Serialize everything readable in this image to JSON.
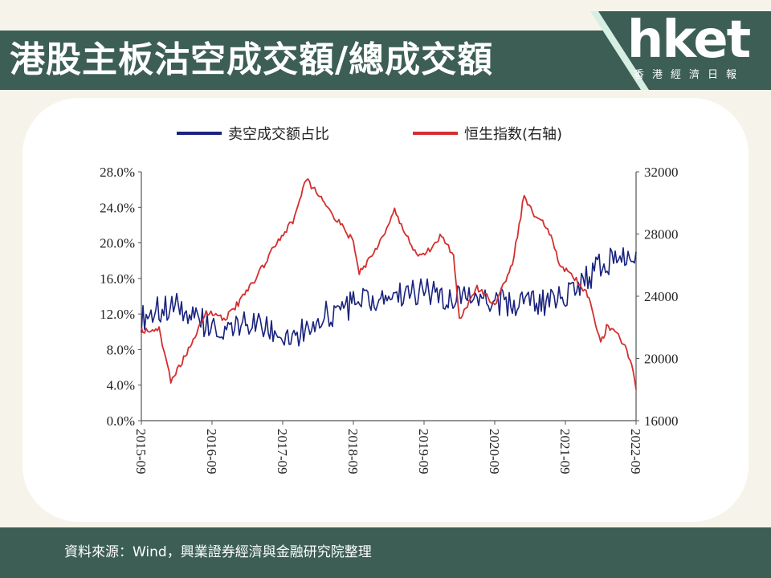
{
  "header": {
    "title": "港股主板沽空成交額/總成交額",
    "logo": {
      "main": "hket",
      "sub": "香港經濟日報"
    },
    "colors": {
      "bar": "#3c5e55",
      "accent": "#d7efe3"
    }
  },
  "footer": {
    "source": "資料來源：Wind，興業證券經濟與金融研究院整理"
  },
  "chart_data": {
    "type": "line",
    "x_ticks": [
      "2015-09",
      "2016-09",
      "2017-09",
      "2018-09",
      "2019-09",
      "2020-09",
      "2021-09",
      "2022-09"
    ],
    "x_range": [
      "2015-09",
      "2022-09"
    ],
    "left_axis": {
      "ticks": [
        "0.0%",
        "4.0%",
        "8.0%",
        "12.0%",
        "16.0%",
        "20.0%",
        "24.0%",
        "28.0%"
      ],
      "range": [
        0,
        28
      ]
    },
    "right_axis": {
      "ticks": [
        "16000",
        "20000",
        "24000",
        "28000",
        "32000"
      ],
      "range": [
        16000,
        32000
      ]
    },
    "grid": false,
    "legend_position": "top",
    "series": [
      {
        "name": "卖空成交额占比",
        "axis": "left",
        "unit": "%",
        "color": "#1a237e",
        "x": [
          "2015-09",
          "2015-12",
          "2016-03",
          "2016-06",
          "2016-09",
          "2016-12",
          "2017-03",
          "2017-06",
          "2017-09",
          "2017-12",
          "2018-03",
          "2018-06",
          "2018-09",
          "2018-12",
          "2019-03",
          "2019-06",
          "2019-09",
          "2019-12",
          "2020-03",
          "2020-06",
          "2020-09",
          "2020-12",
          "2021-03",
          "2021-06",
          "2021-09",
          "2021-12",
          "2022-03",
          "2022-06",
          "2022-09"
        ],
        "values": [
          11.5,
          12.5,
          12.8,
          11.5,
          10.5,
          10.0,
          11.0,
          10.2,
          9.8,
          10.0,
          11.5,
          12.3,
          13.0,
          13.5,
          14.0,
          14.5,
          14.5,
          14.0,
          14.3,
          14.0,
          13.5,
          13.0,
          13.5,
          13.2,
          14.0,
          15.5,
          17.5,
          18.5,
          19.0
        ]
      },
      {
        "name": "恒生指数(右轴)",
        "axis": "right",
        "unit": "",
        "color": "#d32f2f",
        "x": [
          "2015-09",
          "2015-12",
          "2016-02",
          "2016-05",
          "2016-08",
          "2016-11",
          "2017-02",
          "2017-05",
          "2017-08",
          "2017-11",
          "2018-01",
          "2018-03",
          "2018-06",
          "2018-09",
          "2018-10",
          "2019-01",
          "2019-04",
          "2019-06",
          "2019-08",
          "2019-10",
          "2019-12",
          "2020-02",
          "2020-03",
          "2020-06",
          "2020-09",
          "2020-12",
          "2021-02",
          "2021-04",
          "2021-06",
          "2021-08",
          "2021-10",
          "2021-12",
          "2022-01",
          "2022-03",
          "2022-04",
          "2022-06",
          "2022-08",
          "2022-09"
        ],
        "values": [
          21800,
          21900,
          18500,
          20500,
          23000,
          22500,
          23800,
          25500,
          27500,
          29000,
          31500,
          30500,
          29000,
          27500,
          25500,
          27000,
          29500,
          28000,
          26500,
          27000,
          28000,
          26500,
          22500,
          24500,
          23500,
          26000,
          30500,
          29000,
          28500,
          26000,
          25500,
          24500,
          24000,
          21000,
          22000,
          21500,
          20000,
          18000
        ]
      }
    ]
  }
}
